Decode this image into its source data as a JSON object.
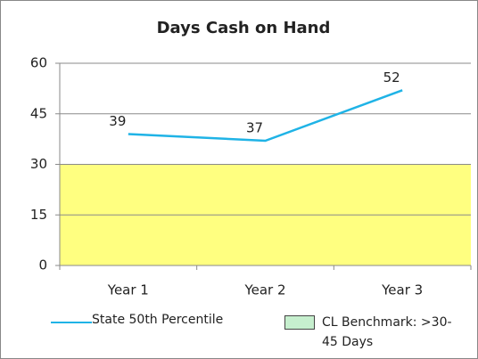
{
  "chart_data": {
    "type": "line",
    "title": "Days Cash on Hand",
    "categories": [
      "Year 1",
      "Year 2",
      "Year 3"
    ],
    "series": [
      {
        "name": "State 50th Percentile",
        "color": "#1fb3e6",
        "values": [
          39,
          37,
          52
        ]
      },
      {
        "name": "CL Benchmark: >30-45 Days",
        "type": "band",
        "color": "#ffff80",
        "legend_color": "#c6efce",
        "values": [
          30,
          30,
          30
        ]
      }
    ],
    "ylim": [
      0,
      60
    ],
    "yticks": [
      0,
      15,
      30,
      45,
      60
    ],
    "grid": true
  }
}
